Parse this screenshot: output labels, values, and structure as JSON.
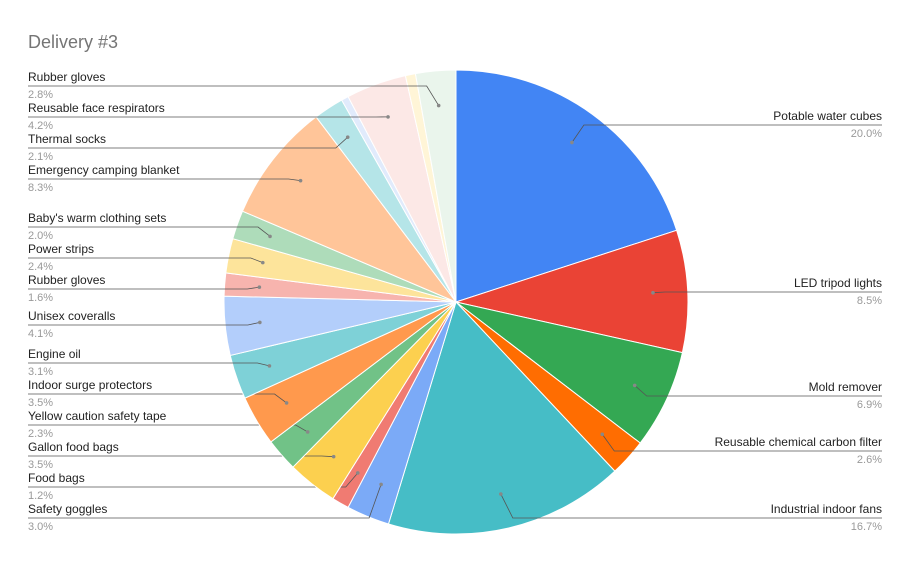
{
  "chart_data": {
    "type": "pie",
    "title": "Delivery #3",
    "categories": [
      "Potable water cubes",
      "LED tripod lights",
      "Mold remover",
      "Reusable chemical carbon filter",
      "Industrial indoor fans",
      "Safety goggles",
      "Food bags",
      "Gallon food bags",
      "Yellow caution safety tape",
      "Indoor surge protectors",
      "Engine oil",
      "Unisex coveralls",
      "Rubber gloves",
      "Power strips",
      "Baby's warm clothing sets",
      "Emergency camping blanket",
      "Thermal socks",
      null,
      "Reusable face respirators",
      null,
      "Rubber gloves"
    ],
    "values": [
      20.0,
      8.5,
      6.9,
      2.6,
      16.7,
      3.0,
      1.2,
      3.5,
      2.3,
      3.5,
      3.1,
      4.1,
      1.6,
      2.4,
      2.0,
      8.3,
      2.1,
      0.5,
      4.2,
      0.7,
      2.8
    ],
    "value_labels": [
      "20.0%",
      "8.5%",
      "6.9%",
      "2.6%",
      "16.7%",
      "3.0%",
      "1.2%",
      "3.5%",
      "2.3%",
      "3.5%",
      "3.1%",
      "4.1%",
      "1.6%",
      "2.4%",
      "2.0%",
      "8.3%",
      "2.1%",
      null,
      "4.2%",
      null,
      "2.8%"
    ],
    "colors": [
      "#4285f4",
      "#ea4335",
      "#34a853",
      "#ff6d01",
      "#46bdc6",
      "#7baaf7",
      "#f07b72",
      "#fcd04f",
      "#71c287",
      "#ff994d",
      "#7ed1d7",
      "#b3cefb",
      "#f7b4ae",
      "#fde49b",
      "#aedcba",
      "#ffc599",
      "#b5e5e8",
      "#e1ebfc",
      "#fce8e6",
      "#fff5d7",
      "#eaf5ec"
    ]
  }
}
